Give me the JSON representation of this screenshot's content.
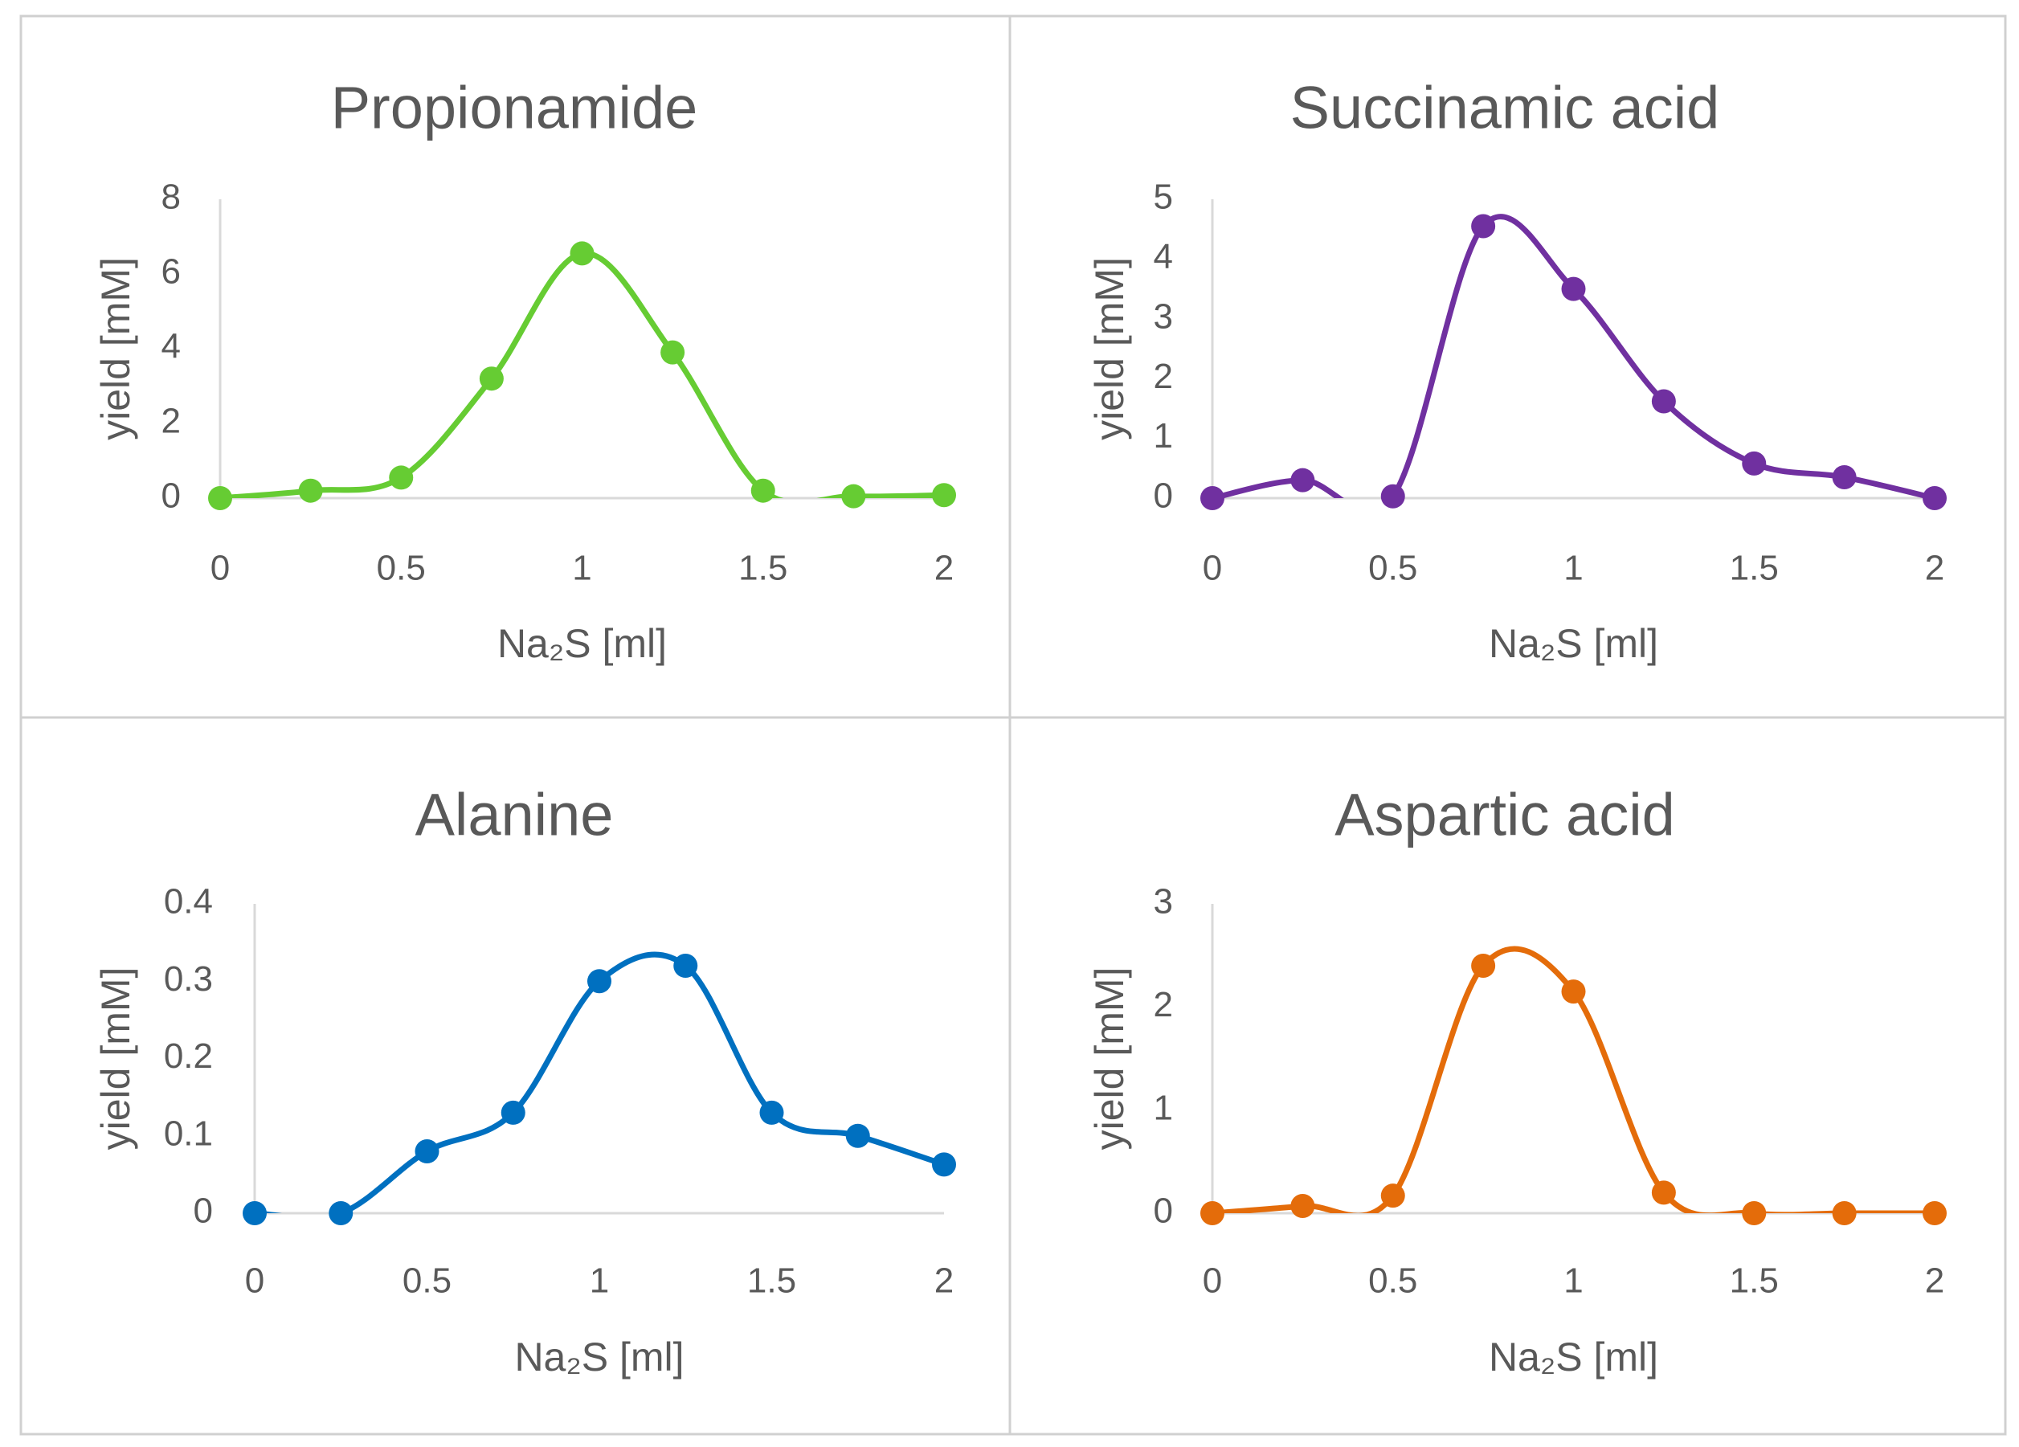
{
  "chart_data": [
    {
      "type": "line",
      "title": "Propionamide",
      "xlabel": "Na₂S [ml]",
      "ylabel": "yield [mM]",
      "xlim": [
        0,
        2
      ],
      "ylim": [
        0,
        8
      ],
      "xticks": [
        "0",
        "0.5",
        "1",
        "1.5",
        "2"
      ],
      "yticks": [
        "0",
        "2",
        "4",
        "6",
        "8"
      ],
      "x": [
        0,
        0.25,
        0.5,
        0.75,
        1,
        1.25,
        1.5,
        1.75,
        2
      ],
      "series": [
        {
          "values": [
            0,
            0.2,
            0.55,
            3.2,
            6.55,
            3.9,
            0.2,
            0.05,
            0.08
          ],
          "color": "#66CC33"
        }
      ]
    },
    {
      "type": "line",
      "title": "Succinamic acid",
      "xlabel": "Na₂S [ml]",
      "ylabel": "yield [mM]",
      "xlim": [
        0,
        2
      ],
      "ylim": [
        0,
        5
      ],
      "xticks": [
        "0",
        "0.5",
        "1",
        "1.5",
        "2"
      ],
      "yticks": [
        "0",
        "1",
        "2",
        "3",
        "4",
        "5"
      ],
      "x": [
        0,
        0.25,
        0.5,
        0.75,
        1,
        1.25,
        1.5,
        1.75,
        2
      ],
      "series": [
        {
          "values": [
            0,
            0.3,
            0.03,
            4.55,
            3.5,
            1.62,
            0.58,
            0.35,
            0
          ],
          "color": "#7030A0"
        }
      ]
    },
    {
      "type": "line",
      "title": "Alanine",
      "xlabel": "Na₂S [ml]",
      "ylabel": "yield [mM]",
      "xlim": [
        0,
        2
      ],
      "ylim": [
        0,
        0.4
      ],
      "xticks": [
        "0",
        "0.5",
        "1",
        "1.5",
        "2"
      ],
      "yticks": [
        "0",
        "0.1",
        "0.2",
        "0.3",
        "0.4"
      ],
      "x": [
        0,
        0.25,
        0.5,
        0.75,
        1,
        1.25,
        1.5,
        1.75,
        2
      ],
      "series": [
        {
          "values": [
            0,
            0,
            0.08,
            0.13,
            0.3,
            0.32,
            0.13,
            0.1,
            0.063
          ],
          "color": "#0070C0"
        }
      ]
    },
    {
      "type": "line",
      "title": "Aspartic acid",
      "xlabel": "Na₂S [ml]",
      "ylabel": "yield [mM]",
      "xlim": [
        0,
        2
      ],
      "ylim": [
        0,
        3
      ],
      "xticks": [
        "0",
        "0.5",
        "1",
        "1.5",
        "2"
      ],
      "yticks": [
        "0",
        "1",
        "2",
        "3"
      ],
      "x": [
        0,
        0.25,
        0.5,
        0.75,
        1,
        1.25,
        1.5,
        1.75,
        2
      ],
      "series": [
        {
          "values": [
            0,
            0.07,
            0.17,
            2.4,
            2.15,
            0.2,
            0,
            0,
            0
          ],
          "color": "#E46C0A"
        }
      ]
    }
  ]
}
